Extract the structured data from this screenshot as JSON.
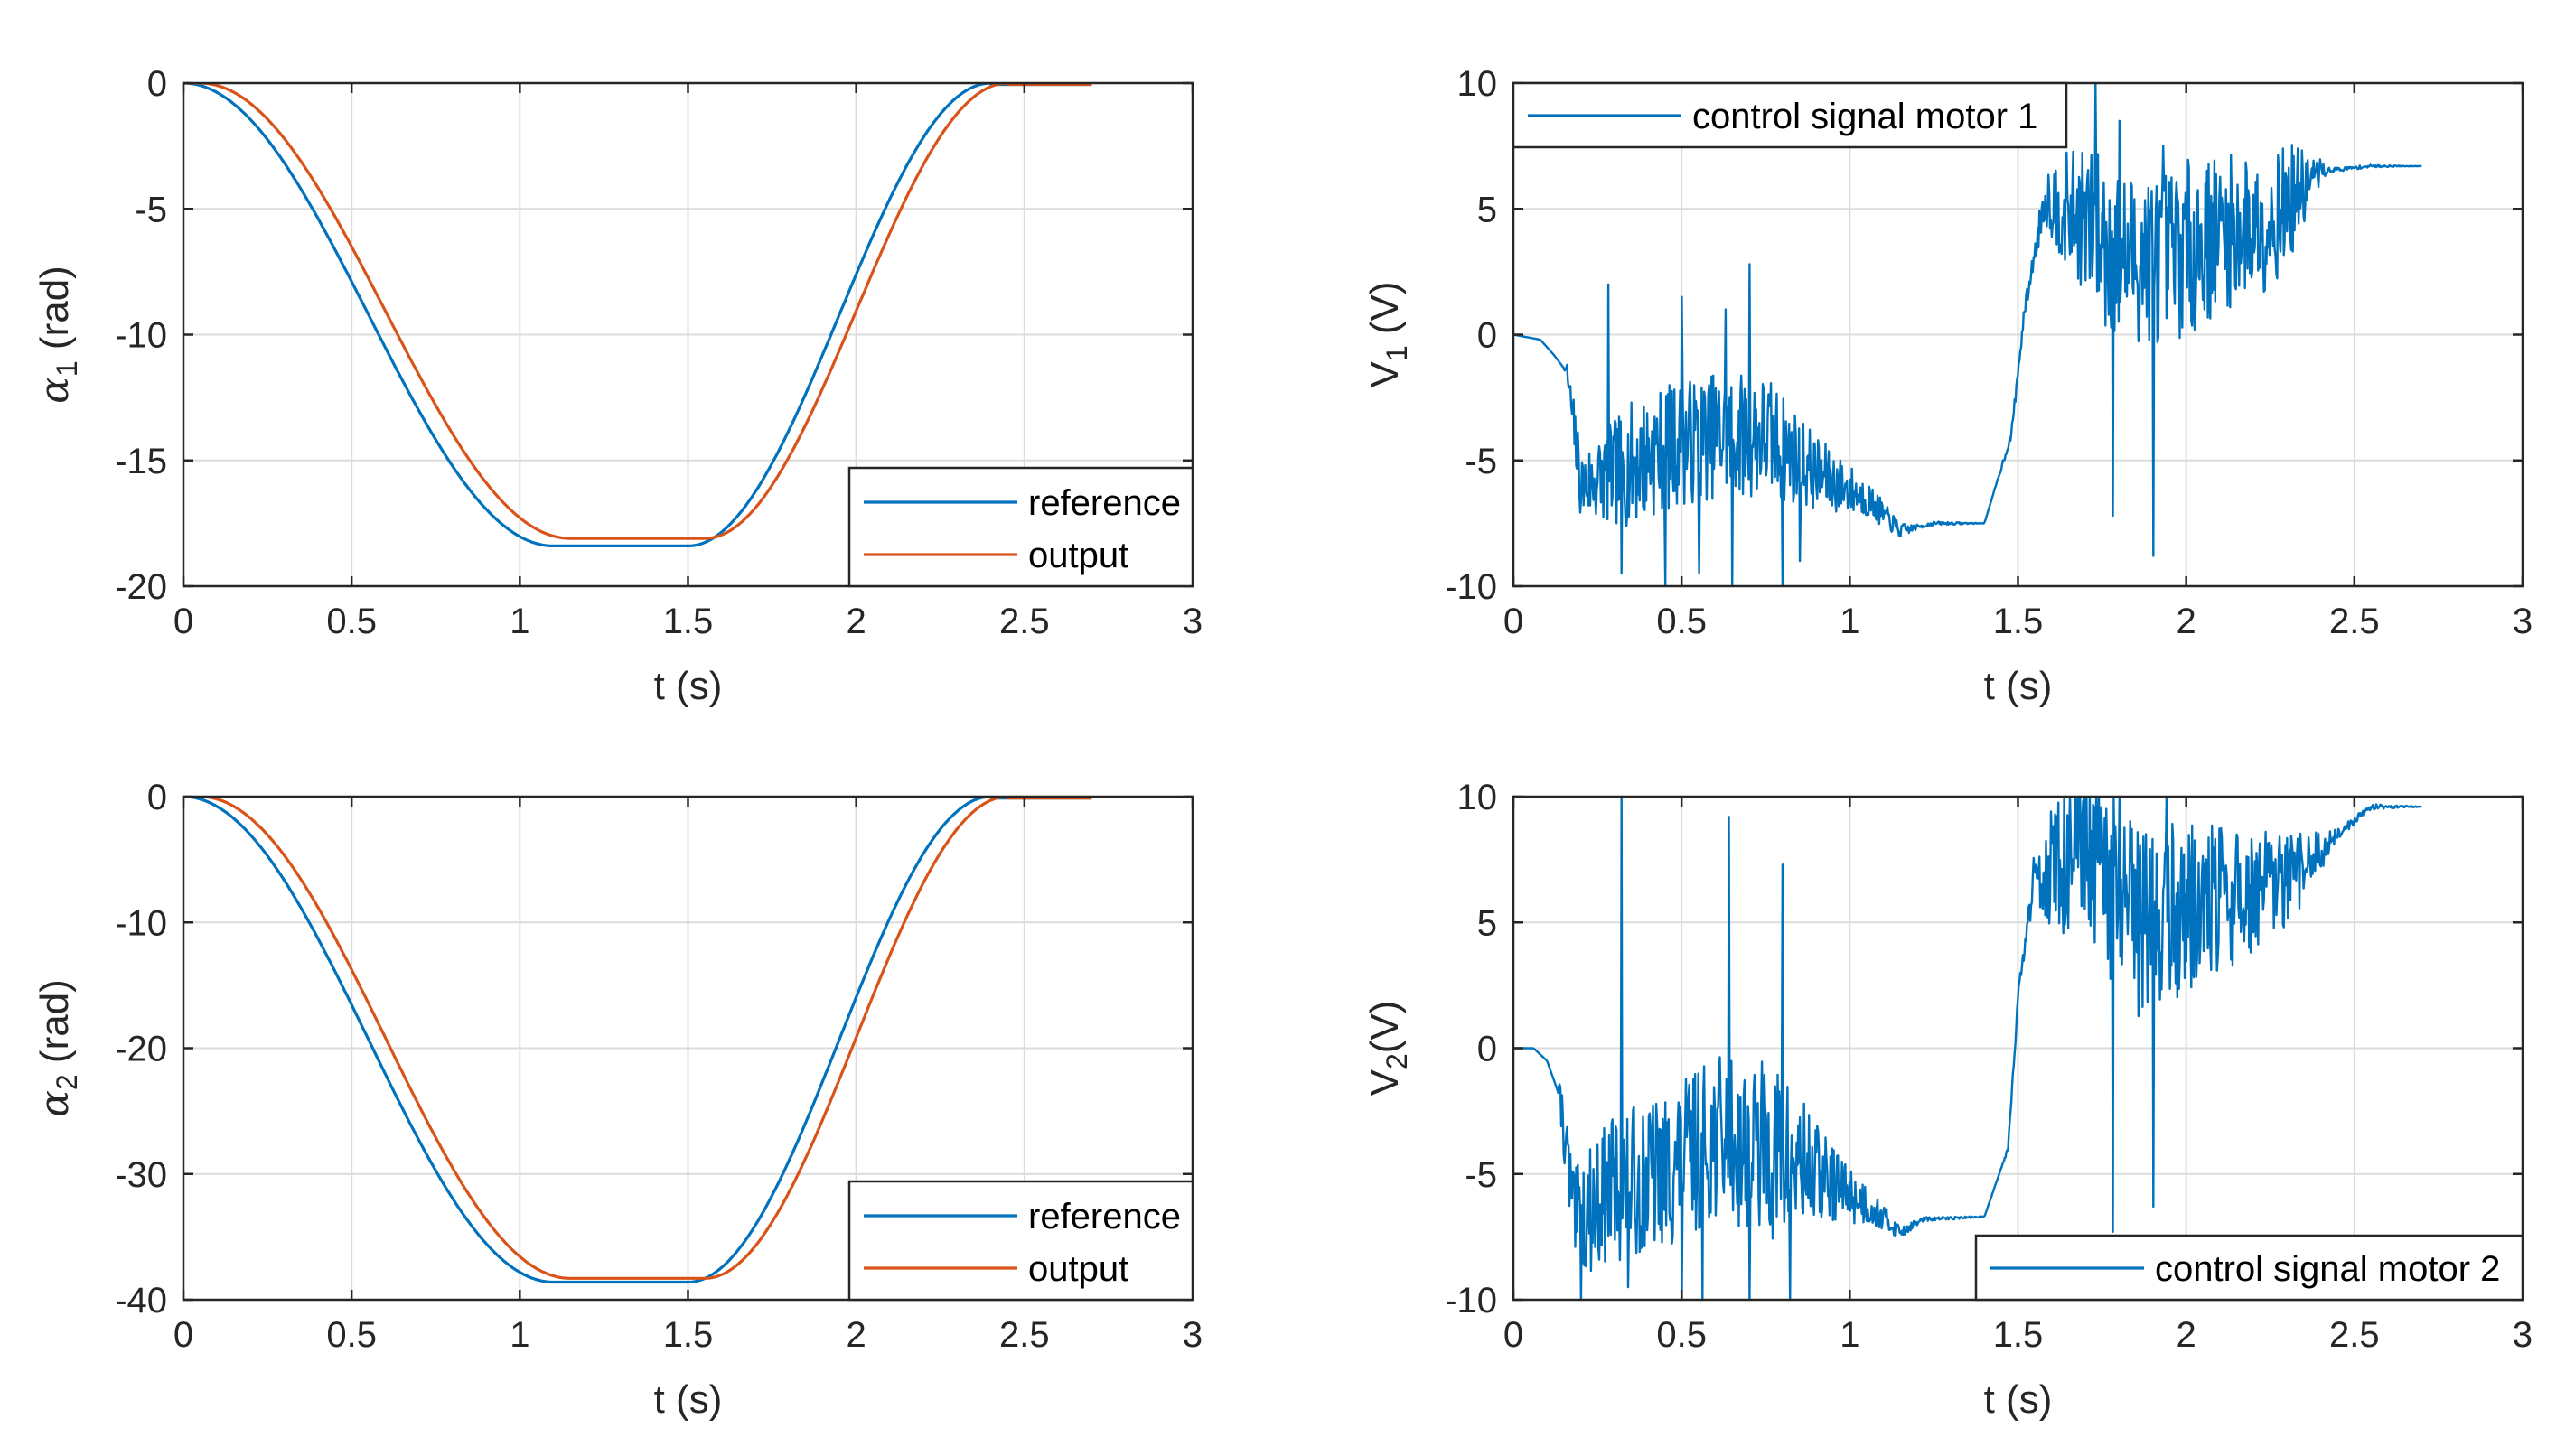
{
  "chart_data": [
    {
      "id": "alpha1",
      "type": "line",
      "title": "",
      "xlabel": "t (s)",
      "ylabel_symbol": "α",
      "ylabel_sub": "1",
      "ylabel_rest": " (rad)",
      "xlim": [
        0,
        3
      ],
      "ylim": [
        -20,
        0
      ],
      "xticks": [
        0,
        0.5,
        1,
        1.5,
        2,
        2.5,
        3
      ],
      "xtick_labels": [
        "0",
        "0.5",
        "1",
        "1.5",
        "2",
        "2.5",
        "3"
      ],
      "yticks": [
        -20,
        -15,
        -10,
        -5,
        0
      ],
      "ytick_labels": [
        "-20",
        "-15",
        "-10",
        "-5",
        "0"
      ],
      "grid": true,
      "legend_position": "bottom-right",
      "series": [
        {
          "name": "reference",
          "color": "#0072BD",
          "kind": "reference_profile",
          "t0": 0.0,
          "t_down": 1.1,
          "t_hold": 1.5,
          "t_up": 2.4,
          "t_end": 2.7,
          "low": -18.4
        },
        {
          "name": "output",
          "color": "#D95319",
          "kind": "reference_profile",
          "t0": 0.05,
          "t_down": 1.15,
          "t_hold": 1.55,
          "t_up": 2.45,
          "t_end": 2.7,
          "low": -18.1
        }
      ]
    },
    {
      "id": "v1",
      "type": "line",
      "title": "",
      "xlabel": "t (s)",
      "ylabel_symbol": "V",
      "ylabel_sub": "1",
      "ylabel_rest": " (V)",
      "xlim": [
        0,
        3
      ],
      "ylim": [
        -10,
        10
      ],
      "xticks": [
        0,
        0.5,
        1,
        1.5,
        2,
        2.5,
        3
      ],
      "xtick_labels": [
        "0",
        "0.5",
        "1",
        "1.5",
        "2",
        "2.5",
        "3"
      ],
      "yticks": [
        -10,
        -5,
        0,
        5,
        10
      ],
      "ytick_labels": [
        "-10",
        "-5",
        "0",
        "5",
        "10"
      ],
      "grid": true,
      "legend_position": "top-left",
      "series": [
        {
          "name": "control signal motor 1",
          "color": "#0072BD",
          "kind": "noisy",
          "seed": 7,
          "t_end": 2.7,
          "baseline": [
            [
              0,
              0
            ],
            [
              0.08,
              -0.2
            ],
            [
              0.12,
              -0.8
            ],
            [
              0.16,
              -1.5
            ],
            [
              0.2,
              -6
            ],
            [
              0.3,
              -5.5
            ],
            [
              0.45,
              -4.5
            ],
            [
              0.6,
              -4
            ],
            [
              0.75,
              -4
            ],
            [
              0.9,
              -5.5
            ],
            [
              1.05,
              -6.5
            ],
            [
              1.15,
              -7.8
            ],
            [
              1.25,
              -7.5
            ],
            [
              1.4,
              -7.5
            ],
            [
              1.48,
              -4
            ],
            [
              1.52,
              1
            ],
            [
              1.58,
              5.5
            ],
            [
              1.7,
              4.5
            ],
            [
              1.8,
              3
            ],
            [
              1.95,
              3.2
            ],
            [
              2.1,
              4
            ],
            [
              2.25,
              4.5
            ],
            [
              2.4,
              6.5
            ],
            [
              2.55,
              6.7
            ],
            [
              2.7,
              6.7
            ]
          ],
          "noise": [
            [
              0,
              0
            ],
            [
              0.15,
              0
            ],
            [
              0.18,
              1.2
            ],
            [
              0.35,
              2.5
            ],
            [
              0.75,
              2.5
            ],
            [
              0.9,
              1.5
            ],
            [
              1.1,
              0.5
            ],
            [
              1.2,
              0.1
            ],
            [
              1.42,
              0
            ],
            [
              1.55,
              0.4
            ],
            [
              1.62,
              2
            ],
            [
              1.75,
              3.5
            ],
            [
              2.0,
              3.5
            ],
            [
              2.3,
              2.5
            ],
            [
              2.42,
              0.1
            ],
            [
              2.7,
              0
            ]
          ],
          "spikes": [
            [
              0.28,
              2.0
            ],
            [
              0.32,
              -9.5
            ],
            [
              0.45,
              -10
            ],
            [
              0.5,
              1.5
            ],
            [
              0.55,
              -9.5
            ],
            [
              0.63,
              1
            ],
            [
              0.65,
              -10
            ],
            [
              0.7,
              2.8
            ],
            [
              0.8,
              -10
            ],
            [
              0.85,
              -9
            ],
            [
              1.73,
              10
            ],
            [
              1.78,
              -7.2
            ],
            [
              1.8,
              8.5
            ],
            [
              1.9,
              -8.8
            ],
            [
              1.93,
              7.5
            ]
          ]
        }
      ]
    },
    {
      "id": "alpha2",
      "type": "line",
      "title": "",
      "xlabel": "t (s)",
      "ylabel_symbol": "α",
      "ylabel_sub": "2",
      "ylabel_rest": " (rad)",
      "xlim": [
        0,
        3
      ],
      "ylim": [
        -40,
        0
      ],
      "xticks": [
        0,
        0.5,
        1,
        1.5,
        2,
        2.5,
        3
      ],
      "xtick_labels": [
        "0",
        "0.5",
        "1",
        "1.5",
        "2",
        "2.5",
        "3"
      ],
      "yticks": [
        -40,
        -30,
        -20,
        -10,
        0
      ],
      "ytick_labels": [
        "-40",
        "-30",
        "-20",
        "-10",
        "0"
      ],
      "grid": true,
      "legend_position": "bottom-right",
      "series": [
        {
          "name": "reference",
          "color": "#0072BD",
          "kind": "reference_profile",
          "t0": 0.0,
          "t_down": 1.1,
          "t_hold": 1.5,
          "t_up": 2.4,
          "t_end": 2.7,
          "low": -38.6
        },
        {
          "name": "output",
          "color": "#D95319",
          "kind": "reference_profile",
          "t0": 0.05,
          "t_down": 1.15,
          "t_hold": 1.55,
          "t_up": 2.45,
          "t_end": 2.7,
          "low": -38.3
        }
      ]
    },
    {
      "id": "v2",
      "type": "line",
      "title": "",
      "xlabel": "t (s)",
      "ylabel_symbol": "V",
      "ylabel_sub": "2",
      "ylabel_rest": "(V)",
      "xlim": [
        0,
        3
      ],
      "ylim": [
        -10,
        10
      ],
      "xticks": [
        0,
        0.5,
        1,
        1.5,
        2,
        2.5,
        3
      ],
      "xtick_labels": [
        "0",
        "0.5",
        "1",
        "1.5",
        "2",
        "2.5",
        "3"
      ],
      "yticks": [
        -10,
        -5,
        0,
        5,
        10
      ],
      "ytick_labels": [
        "-10",
        "-5",
        "0",
        "5",
        "10"
      ],
      "grid": true,
      "legend_position": "bottom-right",
      "series": [
        {
          "name": "control signal motor 2",
          "color": "#0072BD",
          "kind": "noisy",
          "seed": 13,
          "t_end": 2.7,
          "baseline": [
            [
              0,
              0
            ],
            [
              0.06,
              0
            ],
            [
              0.1,
              -0.5
            ],
            [
              0.14,
              -2
            ],
            [
              0.18,
              -7
            ],
            [
              0.3,
              -5.5
            ],
            [
              0.45,
              -5
            ],
            [
              0.6,
              -3.5
            ],
            [
              0.75,
              -4
            ],
            [
              0.9,
              -5
            ],
            [
              1.05,
              -6.2
            ],
            [
              1.15,
              -7.3
            ],
            [
              1.22,
              -6.8
            ],
            [
              1.4,
              -6.7
            ],
            [
              1.47,
              -4
            ],
            [
              1.5,
              2
            ],
            [
              1.55,
              7
            ],
            [
              1.7,
              7.5
            ],
            [
              1.85,
              5
            ],
            [
              2.0,
              5.5
            ],
            [
              2.15,
              6
            ],
            [
              2.3,
              6.5
            ],
            [
              2.45,
              8.5
            ],
            [
              2.55,
              9.6
            ],
            [
              2.7,
              9.6
            ]
          ],
          "noise": [
            [
              0,
              0
            ],
            [
              0.13,
              0
            ],
            [
              0.16,
              2
            ],
            [
              0.3,
              3
            ],
            [
              0.8,
              3.5
            ],
            [
              0.95,
              1.5
            ],
            [
              1.1,
              0.5
            ],
            [
              1.2,
              0.1
            ],
            [
              1.45,
              0
            ],
            [
              1.53,
              0.5
            ],
            [
              1.6,
              2.5
            ],
            [
              1.75,
              4
            ],
            [
              2.0,
              3.5
            ],
            [
              2.3,
              2
            ],
            [
              2.45,
              0.2
            ],
            [
              2.7,
              0
            ]
          ],
          "spikes": [
            [
              0.2,
              -10
            ],
            [
              0.32,
              10
            ],
            [
              0.34,
              -9.5
            ],
            [
              0.5,
              -10
            ],
            [
              0.56,
              -10
            ],
            [
              0.64,
              9.2
            ],
            [
              0.7,
              -10
            ],
            [
              0.8,
              7.3
            ],
            [
              0.82,
              -10
            ],
            [
              1.78,
              -7.3
            ],
            [
              1.8,
              10
            ],
            [
              1.9,
              -6.3
            ],
            [
              1.94,
              10
            ]
          ]
        }
      ]
    }
  ]
}
